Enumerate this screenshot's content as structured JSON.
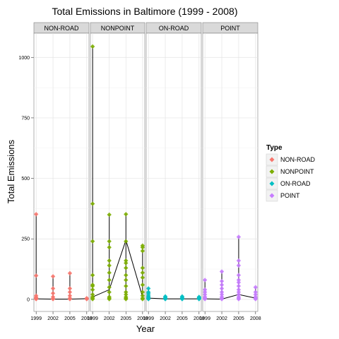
{
  "chart_data": {
    "type": "scatter",
    "title": "Total Emissions in Baltimore (1999 - 2008)",
    "xlabel": "Year",
    "ylabel": "Total Emissions",
    "x_ticks": [
      1999,
      2002,
      2005,
      2008
    ],
    "y_ticks": [
      0,
      250,
      500,
      750,
      1000
    ],
    "xlim": [
      1998.6,
      2008.4
    ],
    "ylim": [
      -50,
      1100
    ],
    "grid": true,
    "legend": {
      "title": "Type",
      "placement": "right",
      "entries": [
        {
          "name": "NON-ROAD",
          "color": "#F8766D"
        },
        {
          "name": "NONPOINT",
          "color": "#7CAE00"
        },
        {
          "name": "ON-ROAD",
          "color": "#00BFC4"
        },
        {
          "name": "POINT",
          "color": "#C77CFF"
        }
      ]
    },
    "facets": [
      {
        "name": "NON-ROAD",
        "color": "#F8766D",
        "points": [
          {
            "x": 1999,
            "y": [
              1,
              2,
              5,
              8,
              15,
              98,
              352
            ]
          },
          {
            "x": 2002,
            "y": [
              1,
              3,
              10,
              25,
              45,
              95
            ]
          },
          {
            "x": 2005,
            "y": [
              1,
              5,
              15,
              30,
              45,
              108
            ]
          },
          {
            "x": 2008,
            "y": [
              1,
              2,
              5
            ]
          }
        ],
        "line": [
          2,
          1,
          1,
          3
        ]
      },
      {
        "name": "NONPOINT",
        "color": "#7CAE00",
        "points": [
          {
            "x": 1999,
            "y": [
              1,
              5,
              10,
              20,
              40,
              55,
              60,
              100,
              240,
              395,
              1045
            ]
          },
          {
            "x": 2002,
            "y": [
              1,
              5,
              10,
              30,
              50,
              80,
              110,
              140,
              160,
              215,
              240,
              350
            ]
          },
          {
            "x": 2005,
            "y": [
              1,
              5,
              10,
              20,
              30,
              55,
              80,
              100,
              130,
              150,
              160,
              240,
              352
            ]
          },
          {
            "x": 2008,
            "y": [
              1,
              5,
              15,
              30,
              60,
              90,
              110,
              130,
              200,
              215,
              222
            ]
          }
        ],
        "line": [
          10,
          40,
          245,
          10
        ]
      },
      {
        "name": "ON-ROAD",
        "color": "#00BFC4",
        "points": [
          {
            "x": 1999,
            "y": [
              1,
              3,
              5,
              8,
              12,
              18,
              25,
              30,
              45
            ]
          },
          {
            "x": 2002,
            "y": [
              1,
              3,
              5,
              8,
              12
            ]
          },
          {
            "x": 2005,
            "y": [
              1,
              3,
              5,
              8,
              12
            ]
          },
          {
            "x": 2008,
            "y": [
              1,
              3,
              5,
              8,
              10
            ]
          }
        ],
        "line": [
          5,
          2,
          2,
          2
        ]
      },
      {
        "name": "POINT",
        "color": "#C77CFF",
        "points": [
          {
            "x": 1999,
            "y": [
              1,
              5,
              10,
              20,
              30,
              40,
              80
            ]
          },
          {
            "x": 2002,
            "y": [
              1,
              5,
              10,
              20,
              30,
              45,
              60,
              75,
              115
            ]
          },
          {
            "x": 2005,
            "y": [
              1,
              5,
              10,
              20,
              30,
              40,
              55,
              70,
              80,
              100,
              140,
              160,
              258
            ]
          },
          {
            "x": 2008,
            "y": [
              1,
              5,
              10,
              20,
              30,
              50
            ]
          }
        ],
        "line": [
          2,
          1,
          20,
          5
        ]
      }
    ]
  }
}
